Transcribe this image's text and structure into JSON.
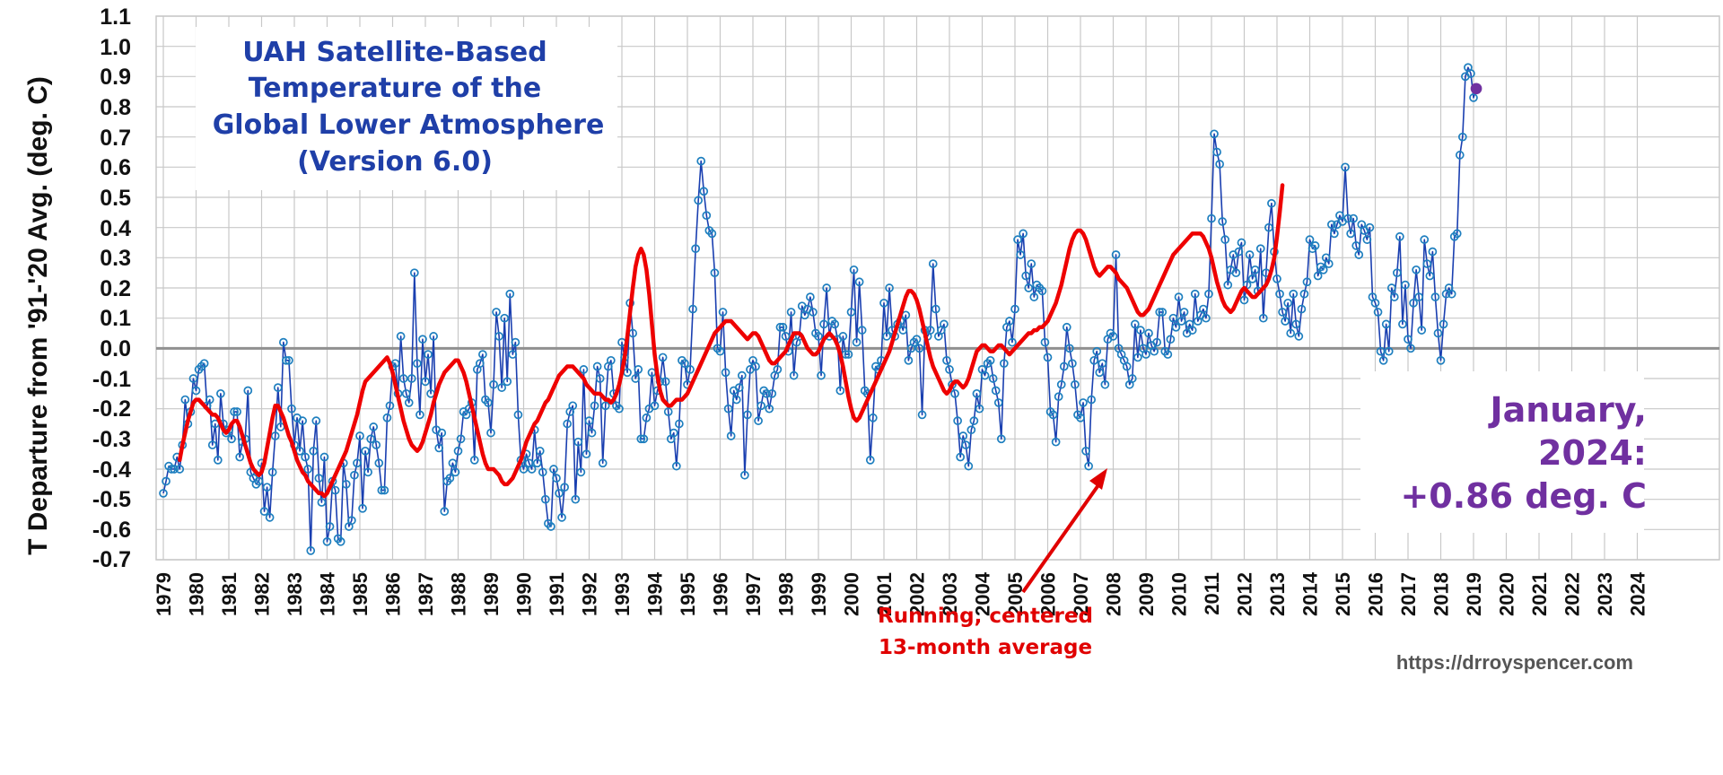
{
  "chart_data": {
    "type": "line",
    "title_lines": [
      "UAH Satellite-Based",
      "Temperature of the",
      "Global Lower Atmosphere",
      "(Version 6.0)"
    ],
    "ylabel": "T Departure from '91-'20 Avg. (deg. C)",
    "ylim": [
      -0.7,
      1.1
    ],
    "yticks": [
      "1.1",
      "1.0",
      "0.9",
      "0.8",
      "0.7",
      "0.6",
      "0.5",
      "0.4",
      "0.3",
      "0.2",
      "0.1",
      "0.0",
      "-0.1",
      "-0.2",
      "-0.3",
      "-0.4",
      "-0.5",
      "-0.6",
      "-0.7"
    ],
    "x_start_year": 1979,
    "x_end_year": 2024,
    "xticks": [
      "1979",
      "1980",
      "1981",
      "1982",
      "1983",
      "1984",
      "1985",
      "1986",
      "1987",
      "1988",
      "1989",
      "1990",
      "1991",
      "1992",
      "1993",
      "1994",
      "1995",
      "1996",
      "1997",
      "1998",
      "1999",
      "2000",
      "2001",
      "2002",
      "2003",
      "2004",
      "2005",
      "2006",
      "2007",
      "2008",
      "2009",
      "2010",
      "2011",
      "2012",
      "2013",
      "2014",
      "2015",
      "2016",
      "2017",
      "2018",
      "2019",
      "2020",
      "2021",
      "2022",
      "2023",
      "2024"
    ],
    "grid": true,
    "series": [
      {
        "values": [
          -0.48,
          -0.44,
          -0.39,
          -0.4,
          -0.4,
          -0.36,
          -0.4,
          -0.32,
          -0.17,
          -0.25,
          -0.21,
          -0.1,
          -0.14,
          -0.07,
          -0.06,
          -0.05,
          -0.19,
          -0.17,
          -0.32,
          -0.25,
          -0.37,
          -0.15,
          -0.25,
          -0.28,
          -0.27,
          -0.3,
          -0.21,
          -0.21,
          -0.36,
          -0.31,
          -0.3,
          -0.14,
          -0.41,
          -0.43,
          -0.45,
          -0.44,
          -0.38,
          -0.54,
          -0.46,
          -0.56,
          -0.41,
          -0.29,
          -0.13,
          -0.26,
          0.02,
          -0.04,
          -0.04,
          -0.2,
          -0.32,
          -0.23,
          -0.34,
          -0.24,
          -0.36,
          -0.4,
          -0.67,
          -0.34,
          -0.24,
          -0.43,
          -0.51,
          -0.36,
          -0.64,
          -0.59,
          -0.44,
          -0.47,
          -0.63,
          -0.64,
          -0.38,
          -0.45,
          -0.59,
          -0.57,
          -0.42,
          -0.38,
          -0.29,
          -0.53,
          -0.34,
          -0.41,
          -0.3,
          -0.26,
          -0.32,
          -0.38,
          -0.47,
          -0.47,
          -0.23,
          -0.19,
          -0.06,
          -0.05,
          -0.15,
          0.04,
          -0.1,
          -0.15,
          -0.18,
          -0.1,
          0.25,
          -0.05,
          -0.22,
          0.03,
          -0.11,
          -0.02,
          -0.15,
          0.04,
          -0.27,
          -0.33,
          -0.28,
          -0.54,
          -0.44,
          -0.43,
          -0.38,
          -0.41,
          -0.34,
          -0.3,
          -0.21,
          -0.22,
          -0.2,
          -0.18,
          -0.37,
          -0.07,
          -0.05,
          -0.02,
          -0.17,
          -0.18,
          -0.28,
          -0.12,
          0.12,
          0.04,
          -0.13,
          0.1,
          -0.11,
          0.18,
          -0.02,
          0.02,
          -0.22,
          -0.37,
          -0.4,
          -0.35,
          -0.38,
          -0.4,
          -0.27,
          -0.38,
          -0.34,
          -0.41,
          -0.5,
          -0.58,
          -0.59,
          -0.4,
          -0.43,
          -0.48,
          -0.56,
          -0.46,
          -0.25,
          -0.21,
          -0.19,
          -0.5,
          -0.31,
          -0.41,
          -0.07,
          -0.35,
          -0.24,
          -0.28,
          -0.19,
          -0.06,
          -0.1,
          -0.38,
          -0.19,
          -0.06,
          -0.04,
          -0.15,
          -0.19,
          -0.2,
          0.02,
          -0.03,
          -0.08,
          0.15,
          0.05,
          -0.1,
          -0.07,
          -0.3,
          -0.3,
          -0.23,
          -0.2,
          -0.08,
          -0.19,
          -0.14,
          -0.11,
          -0.03,
          -0.11,
          -0.21,
          -0.3,
          -0.28,
          -0.39,
          -0.25,
          -0.04,
          -0.05,
          -0.12,
          -0.07,
          0.13,
          0.33,
          0.49,
          0.62,
          0.52,
          0.44,
          0.39,
          0.38,
          0.25,
          0.0,
          -0.01,
          0.12,
          -0.08,
          -0.2,
          -0.29,
          -0.14,
          -0.17,
          -0.13,
          -0.09,
          -0.42,
          -0.22,
          -0.07,
          -0.04,
          -0.06,
          -0.24,
          -0.19,
          -0.14,
          -0.15,
          -0.2,
          -0.15,
          -0.09,
          -0.07,
          0.07,
          0.07,
          0.04,
          -0.01,
          0.12,
          -0.09,
          0.02,
          0.04,
          0.14,
          0.11,
          0.13,
          0.17,
          0.12,
          0.05,
          0.04,
          -0.09,
          0.08,
          0.2,
          0.04,
          0.09,
          0.08,
          0.03,
          -0.14,
          0.04,
          -0.02,
          -0.02,
          0.12,
          0.26,
          0.02,
          0.22,
          0.06,
          -0.14,
          -0.15,
          -0.37,
          -0.23,
          -0.06,
          -0.07,
          -0.04,
          0.15,
          0.04,
          0.2,
          0.06,
          0.04,
          0.08,
          0.09,
          0.06,
          0.11,
          -0.04,
          0.0,
          0.02,
          0.03,
          0.0,
          -0.22,
          0.06,
          0.04,
          0.06,
          0.28,
          0.13,
          0.04,
          0.06,
          0.08,
          -0.04,
          -0.07,
          -0.12,
          -0.15,
          -0.24,
          -0.36,
          -0.29,
          -0.32,
          -0.39,
          -0.27,
          -0.24,
          -0.15,
          -0.2,
          -0.07,
          -0.09,
          -0.05,
          -0.04,
          -0.1,
          -0.14,
          -0.18,
          -0.3,
          -0.05,
          0.07,
          0.09,
          0.02,
          0.13,
          0.36,
          0.31,
          0.38,
          0.24,
          0.2,
          0.28,
          0.17,
          0.21,
          0.2,
          0.19,
          0.02,
          -0.03,
          -0.21,
          -0.22,
          -0.31,
          -0.16,
          -0.12,
          -0.06,
          0.07,
          0.0,
          -0.05,
          -0.12,
          -0.22,
          -0.23,
          -0.18,
          -0.34,
          -0.39,
          -0.17,
          -0.04,
          -0.01,
          -0.08,
          -0.05,
          -0.12,
          0.03,
          0.05,
          0.04,
          0.31,
          0.0,
          -0.02,
          -0.04,
          -0.06,
          -0.12,
          -0.1,
          0.08,
          -0.03,
          0.06,
          0.0,
          -0.02,
          0.05,
          0.01,
          -0.01,
          0.02,
          0.12,
          0.12,
          -0.01,
          -0.02,
          0.03,
          0.1,
          0.07,
          0.17,
          0.09,
          0.12,
          0.05,
          0.08,
          0.06,
          0.18,
          0.09,
          0.11,
          0.13,
          0.1,
          0.18,
          0.43,
          0.71,
          0.65,
          0.61,
          0.42,
          0.36,
          0.21,
          0.26,
          0.31,
          0.25,
          0.32,
          0.35,
          0.16,
          0.21,
          0.31,
          0.23,
          0.26,
          0.19,
          0.33,
          0.1,
          0.25,
          0.4,
          0.48,
          0.32,
          0.23,
          0.18,
          0.12,
          0.09,
          0.15,
          0.05,
          0.18,
          0.08,
          0.04,
          0.13,
          0.18,
          0.22,
          0.36,
          0.33,
          0.34,
          0.24,
          0.27,
          0.26,
          0.3,
          0.28,
          0.41,
          0.38,
          0.41,
          0.44,
          0.42,
          0.6,
          0.43,
          0.38,
          0.43,
          0.34,
          0.31,
          0.41,
          0.39,
          0.36,
          0.4,
          0.17,
          0.15,
          0.12,
          -0.01,
          -0.04,
          0.08,
          -0.01,
          0.2,
          0.17,
          0.25,
          0.37,
          0.08,
          0.21,
          0.03,
          0.0,
          0.15,
          0.26,
          0.17,
          0.06,
          0.36,
          0.28,
          0.24,
          0.32,
          0.17,
          0.05,
          -0.04,
          0.08,
          0.18,
          0.2,
          0.18,
          0.37,
          0.38,
          0.64,
          0.7,
          0.9,
          0.93,
          0.91,
          0.83,
          0.86
        ]
      },
      {
        "values": [
          -0.37,
          -0.32,
          -0.28,
          -0.24,
          -0.21,
          -0.18,
          -0.17,
          -0.17,
          -0.18,
          -0.19,
          -0.2,
          -0.21,
          -0.22,
          -0.22,
          -0.23,
          -0.25,
          -0.27,
          -0.28,
          -0.27,
          -0.25,
          -0.24,
          -0.24,
          -0.26,
          -0.29,
          -0.32,
          -0.35,
          -0.38,
          -0.4,
          -0.41,
          -0.42,
          -0.41,
          -0.38,
          -0.33,
          -0.28,
          -0.23,
          -0.19,
          -0.19,
          -0.21,
          -0.23,
          -0.26,
          -0.29,
          -0.31,
          -0.34,
          -0.37,
          -0.39,
          -0.41,
          -0.42,
          -0.44,
          -0.45,
          -0.46,
          -0.47,
          -0.48,
          -0.48,
          -0.49,
          -0.48,
          -0.46,
          -0.44,
          -0.42,
          -0.4,
          -0.38,
          -0.36,
          -0.34,
          -0.31,
          -0.28,
          -0.25,
          -0.22,
          -0.18,
          -0.14,
          -0.11,
          -0.1,
          -0.09,
          -0.08,
          -0.07,
          -0.06,
          -0.05,
          -0.04,
          -0.03,
          -0.05,
          -0.08,
          -0.12,
          -0.16,
          -0.2,
          -0.24,
          -0.27,
          -0.3,
          -0.32,
          -0.33,
          -0.34,
          -0.33,
          -0.31,
          -0.28,
          -0.25,
          -0.22,
          -0.18,
          -0.15,
          -0.12,
          -0.1,
          -0.08,
          -0.07,
          -0.06,
          -0.05,
          -0.04,
          -0.04,
          -0.06,
          -0.08,
          -0.11,
          -0.15,
          -0.19,
          -0.23,
          -0.27,
          -0.31,
          -0.35,
          -0.38,
          -0.4,
          -0.4,
          -0.4,
          -0.41,
          -0.42,
          -0.44,
          -0.45,
          -0.45,
          -0.44,
          -0.43,
          -0.41,
          -0.39,
          -0.37,
          -0.34,
          -0.31,
          -0.29,
          -0.27,
          -0.25,
          -0.24,
          -0.22,
          -0.2,
          -0.18,
          -0.17,
          -0.15,
          -0.13,
          -0.11,
          -0.09,
          -0.08,
          -0.07,
          -0.06,
          -0.06,
          -0.06,
          -0.07,
          -0.08,
          -0.09,
          -0.1,
          -0.12,
          -0.13,
          -0.14,
          -0.15,
          -0.15,
          -0.15,
          -0.16,
          -0.17,
          -0.17,
          -0.18,
          -0.17,
          -0.15,
          -0.12,
          -0.08,
          -0.03,
          0.04,
          0.12,
          0.2,
          0.27,
          0.31,
          0.33,
          0.31,
          0.26,
          0.18,
          0.08,
          -0.02,
          -0.09,
          -0.14,
          -0.17,
          -0.18,
          -0.19,
          -0.19,
          -0.18,
          -0.17,
          -0.17,
          -0.17,
          -0.16,
          -0.15,
          -0.13,
          -0.11,
          -0.09,
          -0.07,
          -0.05,
          -0.03,
          -0.01,
          0.01,
          0.03,
          0.05,
          0.06,
          0.07,
          0.08,
          0.09,
          0.09,
          0.09,
          0.08,
          0.07,
          0.06,
          0.05,
          0.04,
          0.03,
          0.04,
          0.05,
          0.05,
          0.04,
          0.02,
          0.0,
          -0.02,
          -0.04,
          -0.05,
          -0.05,
          -0.04,
          -0.03,
          -0.02,
          -0.01,
          0.01,
          0.03,
          0.05,
          0.05,
          0.05,
          0.04,
          0.02,
          0.0,
          -0.01,
          -0.02,
          -0.02,
          -0.01,
          0.01,
          0.03,
          0.04,
          0.05,
          0.04,
          0.03,
          0.01,
          -0.02,
          -0.06,
          -0.11,
          -0.16,
          -0.2,
          -0.23,
          -0.24,
          -0.23,
          -0.21,
          -0.19,
          -0.17,
          -0.15,
          -0.13,
          -0.11,
          -0.09,
          -0.07,
          -0.05,
          -0.03,
          -0.01,
          0.02,
          0.05,
          0.08,
          0.11,
          0.14,
          0.17,
          0.19,
          0.19,
          0.18,
          0.16,
          0.13,
          0.09,
          0.05,
          0.01,
          -0.03,
          -0.06,
          -0.08,
          -0.1,
          -0.12,
          -0.14,
          -0.15,
          -0.14,
          -0.12,
          -0.11,
          -0.11,
          -0.12,
          -0.13,
          -0.12,
          -0.1,
          -0.07,
          -0.04,
          -0.01,
          0.0,
          0.01,
          0.01,
          0.0,
          -0.01,
          -0.01,
          0.0,
          0.01,
          0.01,
          0.0,
          -0.01,
          -0.02,
          -0.01,
          0.0,
          0.01,
          0.02,
          0.03,
          0.04,
          0.05,
          0.05,
          0.06,
          0.06,
          0.07,
          0.07,
          0.08,
          0.09,
          0.11,
          0.13,
          0.15,
          0.18,
          0.21,
          0.25,
          0.29,
          0.33,
          0.36,
          0.38,
          0.39,
          0.39,
          0.38,
          0.36,
          0.33,
          0.3,
          0.27,
          0.25,
          0.24,
          0.25,
          0.26,
          0.27,
          0.27,
          0.26,
          0.25,
          0.23,
          0.22,
          0.21,
          0.2,
          0.18,
          0.16,
          0.14,
          0.12,
          0.11,
          0.11,
          0.12,
          0.13,
          0.15,
          0.17,
          0.19,
          0.21,
          0.23,
          0.25,
          0.27,
          0.29,
          0.31,
          0.32,
          0.33,
          0.34,
          0.35,
          0.36,
          0.37,
          0.38,
          0.38,
          0.38,
          0.38,
          0.37,
          0.35,
          0.33,
          0.3,
          0.26,
          0.22,
          0.19,
          0.16,
          0.14,
          0.13,
          0.12,
          0.13,
          0.15,
          0.17,
          0.19,
          0.2,
          0.19,
          0.18,
          0.17,
          0.17,
          0.18,
          0.19,
          0.2,
          0.21,
          0.23,
          0.26,
          0.3,
          0.37,
          0.45,
          0.54
        ]
      }
    ],
    "colors": {
      "monthly_line": "#1a3fb0",
      "monthly_marker": "#1e7fbf",
      "running_mean": "#ee0000",
      "grid": "#c8c8c8",
      "zero_line": "#909090",
      "title": "#1f3fa8",
      "callout": "#7030a0",
      "last_point": "#7030a0",
      "annotation": "#e00000",
      "url": "#555555"
    },
    "callout_lines": [
      "January,",
      "2024:",
      "+0.86 deg. C"
    ],
    "annotation_lines": [
      "Running, centered",
      "13-month average"
    ],
    "url": "https://drroyspencer.com"
  }
}
